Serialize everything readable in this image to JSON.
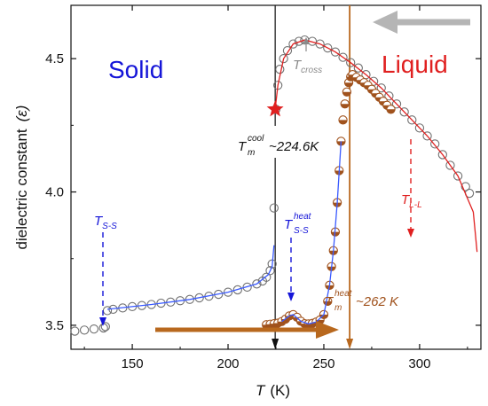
{
  "chart_data": {
    "type": "scatter",
    "title": "",
    "xlabel": "T",
    "xunit": "(K)",
    "ylabel": "dielectric constant",
    "ylabel_symbol": "(ε)",
    "xlim": [
      118,
      332
    ],
    "ylim": [
      3.41,
      4.7
    ],
    "xticks": [
      150,
      200,
      250,
      300
    ],
    "yticks": [
      3.5,
      4.0,
      4.5
    ],
    "x_tick_labels": [
      "150",
      "200",
      "250",
      "300"
    ],
    "y_tick_labels": [
      "3.5",
      "4.0",
      "4.5"
    ],
    "colors": {
      "cooling": "#707070",
      "heating": "#a0521d",
      "fit_blue": "#3b5bff",
      "fit_red": "#e02020",
      "solid_label": "#1515d8",
      "liquid_label": "#e02020",
      "arrow_gray": "#b5b5b5",
      "arrow_brown": "#b8681e",
      "vline_black": "#111111"
    },
    "series": [
      {
        "role": "cooling",
        "points": [
          [
            120,
            3.478
          ],
          [
            125,
            3.482
          ],
          [
            130,
            3.486
          ],
          [
            135,
            3.49
          ],
          [
            136,
            3.495
          ],
          [
            137,
            3.555
          ],
          [
            140,
            3.56
          ],
          [
            145,
            3.565
          ],
          [
            150,
            3.57
          ],
          [
            155,
            3.574
          ],
          [
            160,
            3.578
          ],
          [
            165,
            3.583
          ],
          [
            170,
            3.587
          ],
          [
            175,
            3.592
          ],
          [
            180,
            3.597
          ],
          [
            185,
            3.603
          ],
          [
            190,
            3.609
          ],
          [
            195,
            3.616
          ],
          [
            200,
            3.624
          ],
          [
            205,
            3.633
          ],
          [
            210,
            3.643
          ],
          [
            215,
            3.655
          ],
          [
            218,
            3.666
          ],
          [
            220,
            3.68
          ],
          [
            222,
            3.705
          ],
          [
            223,
            3.73
          ],
          [
            224,
            3.94
          ],
          [
            224.6,
            4.17
          ],
          [
            225,
            4.31
          ],
          [
            226,
            4.4
          ],
          [
            227,
            4.46
          ],
          [
            229,
            4.5
          ],
          [
            231,
            4.53
          ],
          [
            234,
            4.555
          ],
          [
            237,
            4.565
          ],
          [
            240,
            4.57
          ],
          [
            244,
            4.565
          ],
          [
            248,
            4.555
          ],
          [
            252,
            4.54
          ],
          [
            256,
            4.525
          ],
          [
            260,
            4.505
          ],
          [
            264,
            4.485
          ],
          [
            268,
            4.465
          ],
          [
            272,
            4.44
          ],
          [
            276,
            4.415
          ],
          [
            280,
            4.39
          ],
          [
            284,
            4.36
          ],
          [
            288,
            4.33
          ],
          [
            292,
            4.3
          ],
          [
            296,
            4.27
          ],
          [
            300,
            4.24
          ],
          [
            304,
            4.21
          ],
          [
            308,
            4.18
          ],
          [
            312,
            4.14
          ],
          [
            316,
            4.1
          ],
          [
            320,
            4.06
          ],
          [
            324,
            4.02
          ],
          [
            326,
            3.995
          ]
        ]
      },
      {
        "role": "heating",
        "points": [
          [
            220,
            3.502
          ],
          [
            222,
            3.504
          ],
          [
            224,
            3.506
          ],
          [
            226,
            3.508
          ],
          [
            228,
            3.514
          ],
          [
            230,
            3.523
          ],
          [
            232,
            3.535
          ],
          [
            234,
            3.54
          ],
          [
            236,
            3.53
          ],
          [
            238,
            3.515
          ],
          [
            240,
            3.506
          ],
          [
            242,
            3.505
          ],
          [
            244,
            3.507
          ],
          [
            246,
            3.512
          ],
          [
            248,
            3.52
          ],
          [
            250,
            3.54
          ],
          [
            252,
            3.59
          ],
          [
            253,
            3.65
          ],
          [
            254,
            3.72
          ],
          [
            255,
            3.78
          ],
          [
            256,
            3.85
          ],
          [
            257,
            3.96
          ],
          [
            258,
            4.08
          ],
          [
            259,
            4.19
          ],
          [
            260,
            4.27
          ],
          [
            261,
            4.33
          ],
          [
            262,
            4.375
          ],
          [
            263,
            4.41
          ],
          [
            264,
            4.432
          ],
          [
            265,
            4.44
          ],
          [
            267,
            4.43
          ],
          [
            269,
            4.42
          ],
          [
            271,
            4.41
          ],
          [
            273,
            4.4
          ],
          [
            275,
            4.385
          ],
          [
            277,
            4.37
          ],
          [
            279,
            4.355
          ],
          [
            281,
            4.34
          ],
          [
            283,
            4.325
          ],
          [
            285,
            4.31
          ]
        ]
      }
    ],
    "fits": [
      {
        "role": "blue-low",
        "points": [
          [
            137,
            3.56
          ],
          [
            160,
            3.578
          ],
          [
            180,
            3.597
          ],
          [
            200,
            3.624
          ],
          [
            215,
            3.655
          ],
          [
            221,
            3.69
          ],
          [
            223,
            3.72
          ],
          [
            224,
            3.8
          ]
        ]
      },
      {
        "role": "blue-heat",
        "points": [
          [
            228,
            3.514
          ],
          [
            232,
            3.535
          ],
          [
            234,
            3.54
          ],
          [
            238,
            3.515
          ],
          [
            242,
            3.505
          ],
          [
            246,
            3.512
          ],
          [
            250,
            3.54
          ],
          [
            253,
            3.65
          ],
          [
            255,
            3.78
          ],
          [
            257,
            3.96
          ],
          [
            259,
            4.19
          ]
        ]
      },
      {
        "role": "red",
        "points": [
          [
            224.6,
            4.31
          ],
          [
            226,
            4.4
          ],
          [
            229,
            4.5
          ],
          [
            234,
            4.555
          ],
          [
            240,
            4.57
          ],
          [
            248,
            4.555
          ],
          [
            256,
            4.525
          ],
          [
            264,
            4.485
          ],
          [
            272,
            4.44
          ],
          [
            280,
            4.39
          ],
          [
            288,
            4.33
          ],
          [
            296,
            4.27
          ],
          [
            304,
            4.21
          ],
          [
            312,
            4.14
          ],
          [
            320,
            4.06
          ],
          [
            328,
            3.925
          ],
          [
            330,
            3.775
          ]
        ]
      }
    ],
    "star": {
      "x": 224.6,
      "y": 4.31
    },
    "vlines": [
      {
        "role": "black",
        "x": 224.6
      },
      {
        "role": "brown",
        "x": 263.5
      }
    ],
    "annotations": {
      "solid": "Solid",
      "liquid": "Liquid",
      "t_cross": "T",
      "t_cross_sub": "cross",
      "tm_cool": "T",
      "tm_cool_sup": "cool",
      "tm_cool_sub": "m",
      "tm_cool_value": "~224.6K",
      "tm_heat": "T",
      "tm_heat_sup": "heat",
      "tm_heat_sub": "m",
      "tm_heat_value": "~262 K",
      "tss_left": "T",
      "tss_left_sub": "S-S",
      "tss_heat": "T",
      "tss_heat_sup": "heat",
      "tss_heat_sub": "S-S",
      "tll": "T",
      "tll_sub": "L-L"
    }
  }
}
